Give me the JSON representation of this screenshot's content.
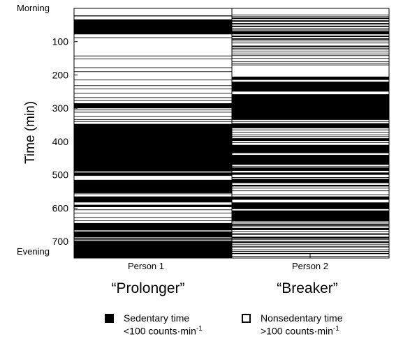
{
  "chart_data": {
    "type": "heatmap",
    "ylabel": "Time (min)",
    "y_top_label": "Morning",
    "y_bottom_label": "Evening",
    "ylim": [
      0,
      750
    ],
    "y_ticks": [
      100,
      200,
      300,
      400,
      500,
      600,
      700
    ],
    "categories": [
      "Person 1",
      "Person 2"
    ],
    "category_subtitles": [
      "“Prolonger”",
      "“Breaker”"
    ],
    "series": [
      {
        "name": "Person 1",
        "sedentary_intervals_min": [
          [
            33,
            78
          ],
          [
            285,
            300
          ],
          [
            347,
            490
          ],
          [
            493,
            503
          ],
          [
            515,
            555
          ],
          [
            565,
            583
          ],
          [
            590,
            597
          ],
          [
            645,
            667
          ],
          [
            670,
            688
          ],
          [
            690,
            693
          ],
          [
            698,
            750
          ]
        ],
        "thin_lines_min": [
          22,
          23,
          88,
          143,
          152,
          178,
          190,
          215,
          232,
          242,
          255,
          268,
          277,
          305,
          312,
          325,
          334,
          340,
          557,
          605,
          615,
          628,
          638,
          695
        ]
      },
      {
        "name": "Person 2",
        "sedentary_intervals_min": [
          [
            28,
            32
          ],
          [
            36,
            40
          ],
          [
            44,
            46
          ],
          [
            52,
            56
          ],
          [
            60,
            62
          ],
          [
            68,
            78
          ],
          [
            82,
            86
          ],
          [
            90,
            94
          ],
          [
            112,
            116
          ],
          [
            205,
            215
          ],
          [
            220,
            250
          ],
          [
            258,
            335
          ],
          [
            345,
            360
          ],
          [
            390,
            398
          ],
          [
            410,
            435
          ],
          [
            440,
            470
          ],
          [
            478,
            488
          ],
          [
            493,
            500
          ],
          [
            512,
            525
          ],
          [
            530,
            535
          ],
          [
            565,
            575
          ],
          [
            583,
            603
          ],
          [
            607,
            640
          ],
          [
            648,
            653
          ],
          [
            660,
            666
          ],
          [
            676,
            680
          ],
          [
            686,
            692
          ],
          [
            700,
            705
          ],
          [
            715,
            718
          ],
          [
            735,
            738
          ]
        ],
        "thin_lines_min": [
          20,
          25,
          48,
          65,
          98,
          104,
          120,
          125,
          131,
          137,
          142,
          150,
          160,
          165,
          170,
          340,
          365,
          372,
          380,
          385,
          403,
          475,
          508,
          540,
          548,
          560,
          645,
          656,
          670,
          695,
          710,
          725,
          730,
          745
        ]
      }
    ],
    "legend": [
      {
        "label": "Sedentary time",
        "sublabel": "<100 counts·min",
        "superscript": "-1",
        "color": "#000000"
      },
      {
        "label": "Nonsedentary time",
        "sublabel": ">100 counts·min",
        "superscript": "-1",
        "color": "#ffffff"
      }
    ]
  }
}
